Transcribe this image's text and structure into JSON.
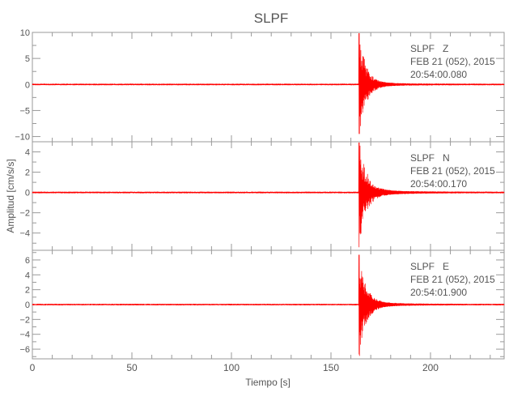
{
  "chart_data": {
    "type": "line",
    "title": "SLPF",
    "xlabel": "Tiempo [s]",
    "ylabel": "Amplitud [cm/s/s]",
    "xlim": [
      0,
      237
    ],
    "xticks": [
      0,
      50,
      100,
      150,
      200
    ],
    "line_color": "#ff0000",
    "axis_color": "#999999",
    "grid": false,
    "panels": [
      {
        "station": "SLPF",
        "component": "Z",
        "date": "FEB 21 (052), 2015",
        "time": "20:54:00.080",
        "ylim": [
          -11,
          10
        ],
        "yticks": [
          10,
          5,
          0,
          -5,
          -10
        ],
        "ytick_labels": [
          "10",
          "5",
          "0",
          "−5",
          "−10"
        ],
        "event_onset_s": 164,
        "peak_max": 9.5,
        "peak_min": -10.2,
        "noise_level": 0.15
      },
      {
        "station": "SLPF",
        "component": "N",
        "date": "FEB 21 (052), 2015",
        "time": "20:54:00.170",
        "ylim": [
          -5.7,
          5
        ],
        "yticks": [
          4,
          2,
          0,
          -2,
          -4
        ],
        "ytick_labels": [
          "4",
          "2",
          "0",
          "−2",
          "−4"
        ],
        "event_onset_s": 164,
        "peak_max": 4.0,
        "peak_min": -5.4,
        "noise_level": 0.08
      },
      {
        "station": "SLPF",
        "component": "E",
        "date": "FEB 21 (052), 2015",
        "time": "20:54:01.900",
        "ylim": [
          -7.3,
          7.3
        ],
        "yticks": [
          6,
          4,
          2,
          0,
          -2,
          -4,
          -6
        ],
        "ytick_labels": [
          "6",
          "4",
          "2",
          "0",
          "−2",
          "−4",
          "−6"
        ],
        "event_onset_s": 164,
        "peak_max": 6.9,
        "peak_min": -6.7,
        "noise_level": 0.1
      }
    ]
  }
}
